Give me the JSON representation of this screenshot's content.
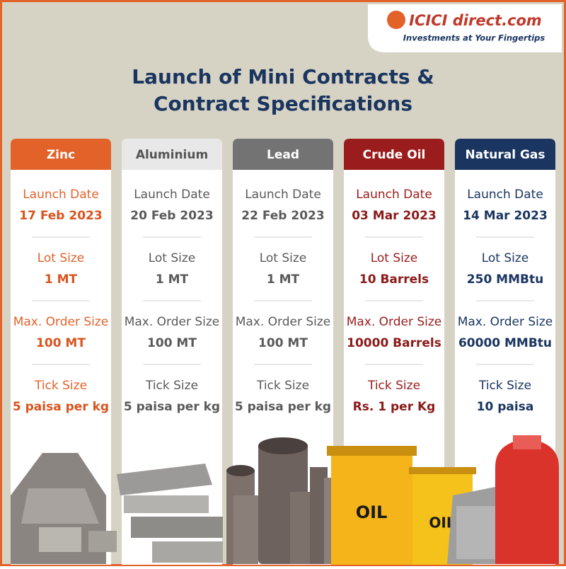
{
  "header": {
    "logo": "ICICI direct.com",
    "tagline": "Investments at Your Fingertips"
  },
  "title": [
    "Launch of Mini Contracts &",
    "Contract Specifications"
  ],
  "barrel_label": "OIL",
  "columns": [
    {
      "name": "Zinc",
      "fields": [
        {
          "label": "Launch Date",
          "value": "17 Feb 2023"
        },
        {
          "label": "Lot Size",
          "value": "1 MT"
        },
        {
          "label": "Max. Order Size",
          "value": "100 MT"
        },
        {
          "label": "Tick Size",
          "value": "5 paisa per kg"
        }
      ]
    },
    {
      "name": "Aluminium",
      "fields": [
        {
          "label": "Launch Date",
          "value": "20 Feb 2023"
        },
        {
          "label": "Lot Size",
          "value": "1 MT"
        },
        {
          "label": "Max. Order Size",
          "value": "100 MT"
        },
        {
          "label": "Tick Size",
          "value": "5 paisa per kg"
        }
      ]
    },
    {
      "name": "Lead",
      "fields": [
        {
          "label": "Launch Date",
          "value": "22 Feb 2023"
        },
        {
          "label": "Lot Size",
          "value": "1 MT"
        },
        {
          "label": "Max. Order Size",
          "value": "100 MT"
        },
        {
          "label": "Tick Size",
          "value": "5 paisa per kg"
        }
      ]
    },
    {
      "name": "Crude Oil",
      "fields": [
        {
          "label": "Launch Date",
          "value": "03 Mar 2023"
        },
        {
          "label": "Lot Size",
          "value": "10 Barrels"
        },
        {
          "label": "Max. Order Size",
          "value": "10000 Barrels"
        },
        {
          "label": "Tick Size",
          "value": "Rs. 1 per Kg"
        }
      ]
    },
    {
      "name": "Natural Gas",
      "fields": [
        {
          "label": "Launch Date",
          "value": "14 Mar 2023"
        },
        {
          "label": "Lot Size",
          "value": "250 MMBtu"
        },
        {
          "label": "Max. Order Size",
          "value": "60000 MMBtu"
        },
        {
          "label": "Tick Size",
          "value": "10 paisa"
        }
      ]
    }
  ]
}
